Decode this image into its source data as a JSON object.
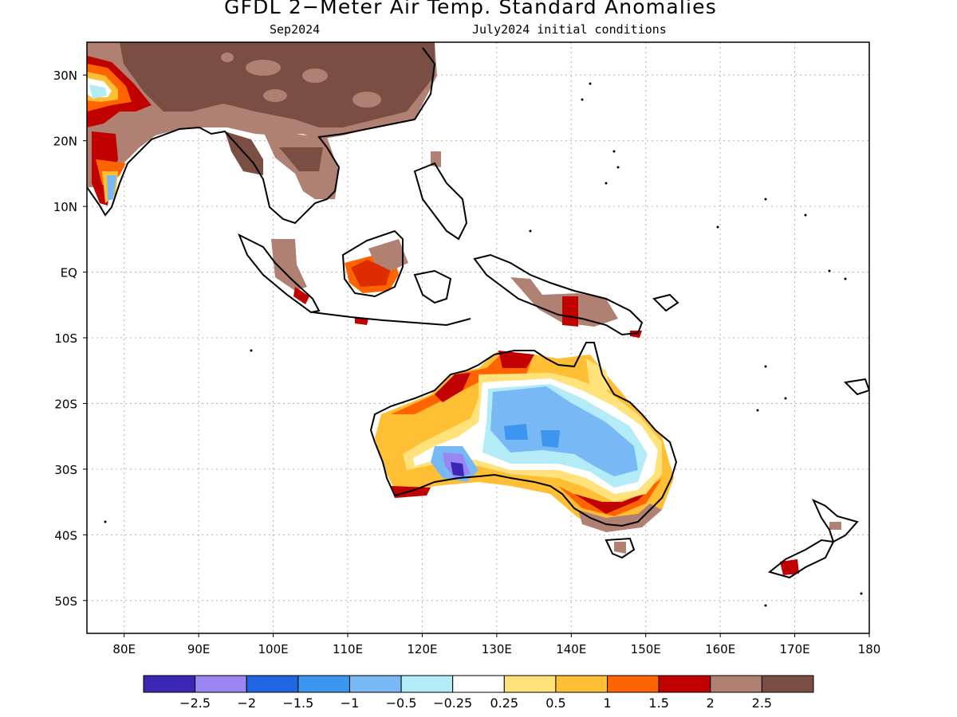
{
  "header": {
    "title": "GFDL 2−Meter Air Temp. Standard Anomalies",
    "valid_month": "Sep2024",
    "init_conditions": "July2024 initial conditions"
  },
  "map": {
    "lat_labels": [
      "30N",
      "20N",
      "10N",
      "EQ",
      "10S",
      "20S",
      "30S",
      "40S",
      "50S"
    ],
    "lon_labels": [
      "80E",
      "90E",
      "100E",
      "110E",
      "120E",
      "130E",
      "140E",
      "150E",
      "160E",
      "170E",
      "180"
    ],
    "lon_range": [
      75,
      180
    ],
    "lat_range": [
      -55,
      35
    ],
    "grid": true
  },
  "colorbar": {
    "colors": [
      "#3a25b5",
      "#9a86f2",
      "#1f64e0",
      "#3c96ef",
      "#78b9f5",
      "#b3ecf7",
      "#ffffff",
      "#ffe27a",
      "#ffbf35",
      "#ff6400",
      "#c10000",
      "#b08073",
      "#7a4e42"
    ],
    "labels": [
      "−2.5",
      "−2",
      "−1.5",
      "−1",
      "−0.5",
      "−0.25",
      "0.25",
      "0.5",
      "1",
      "1.5",
      "2",
      "2.5"
    ]
  }
}
